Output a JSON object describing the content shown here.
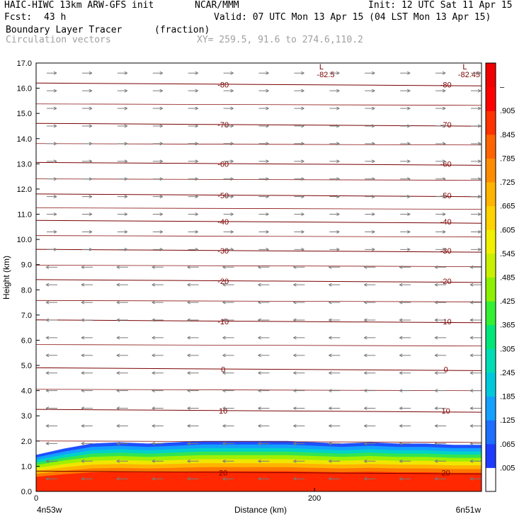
{
  "header": {
    "model": "HAIC-HIWC 13km ARW-GFS init",
    "org": "NCAR/MMM",
    "init": "Init: 12 UTC Sat 11 Apr 15",
    "fcst_label": "Fcst:",
    "fcst_value": "43 h",
    "valid": "Valid: 07 UTC Mon 13 Apr 15 (04 LST Mon 13 Apr 15)",
    "field": "Boundary Layer Tracer",
    "units": "(fraction)",
    "vectors": "Circulation vectors",
    "xy": "XY= 259.5, 91.6 to 274.6,110.2"
  },
  "chart_data": {
    "type": "heatmap",
    "ylabel": "Height (km)",
    "xlabel": "Distance (km)",
    "left_label": "4n53w",
    "right_label": "6n51w",
    "xlim": [
      0,
      320
    ],
    "ylim": [
      0.0,
      17.0
    ],
    "y_ticks": [
      "0.0",
      "1.0",
      "2.0",
      "3.0",
      "4.0",
      "5.0",
      "6.0",
      "7.0",
      "8.0",
      "9.0",
      "10.0",
      "11.0",
      "12.0",
      "13.0",
      "14.0",
      "15.0",
      "16.0",
      "17.0"
    ],
    "x_ticks": [
      {
        "value": 0,
        "label": "0"
      },
      {
        "value": 200,
        "label": "200"
      }
    ],
    "colorbar": {
      "labels": [
        ".005",
        ".065",
        ".125",
        ".185",
        ".245",
        ".305",
        ".365",
        ".425",
        ".485",
        ".545",
        ".605",
        ".665",
        ".725",
        ".785",
        ".845",
        ".905",
        "–"
      ],
      "colors": [
        "#ffffff",
        "#1e3cff",
        "#1e6eff",
        "#14a0ff",
        "#00c8dc",
        "#00dcb4",
        "#00e678",
        "#32f032",
        "#8cf000",
        "#c8f000",
        "#f0f000",
        "#ffd200",
        "#ffb400",
        "#ff8c00",
        "#ff6400",
        "#ff3200",
        "#ff0000",
        "#f00000"
      ]
    },
    "tracer_top_km": [
      1.45,
      1.7,
      1.9,
      1.95,
      1.9,
      1.95,
      2.0,
      2.0,
      2.0,
      2.0,
      1.95,
      1.9,
      1.95,
      1.9,
      1.9,
      1.85,
      1.85
    ],
    "temperature_contours": [
      {
        "value": -80,
        "label": "-80",
        "height_km": 16.15
      },
      {
        "value": -70,
        "label": "-70",
        "height_km": 14.55
      },
      {
        "value": -60,
        "label": "-60",
        "height_km": 13.0
      },
      {
        "value": -50,
        "label": "-50",
        "height_km": 11.75
      },
      {
        "value": -40,
        "label": "-40",
        "height_km": 10.7
      },
      {
        "value": -30,
        "label": "-30",
        "height_km": 9.55
      },
      {
        "value": -20,
        "label": "-20",
        "height_km": 8.35
      },
      {
        "value": -10,
        "label": "-10",
        "height_km": 6.75
      },
      {
        "value": 0,
        "label": "0",
        "height_km": 4.85
      },
      {
        "value": 10,
        "label": "10",
        "height_km": 3.2
      },
      {
        "value": 20,
        "label": "20",
        "height_km": 0.75
      }
    ],
    "minimum_labels": [
      {
        "letter": "L",
        "value": "-82.5",
        "x_km": 205
      },
      {
        "letter": "L",
        "value": "-82.45",
        "x_km": 308
      }
    ]
  }
}
